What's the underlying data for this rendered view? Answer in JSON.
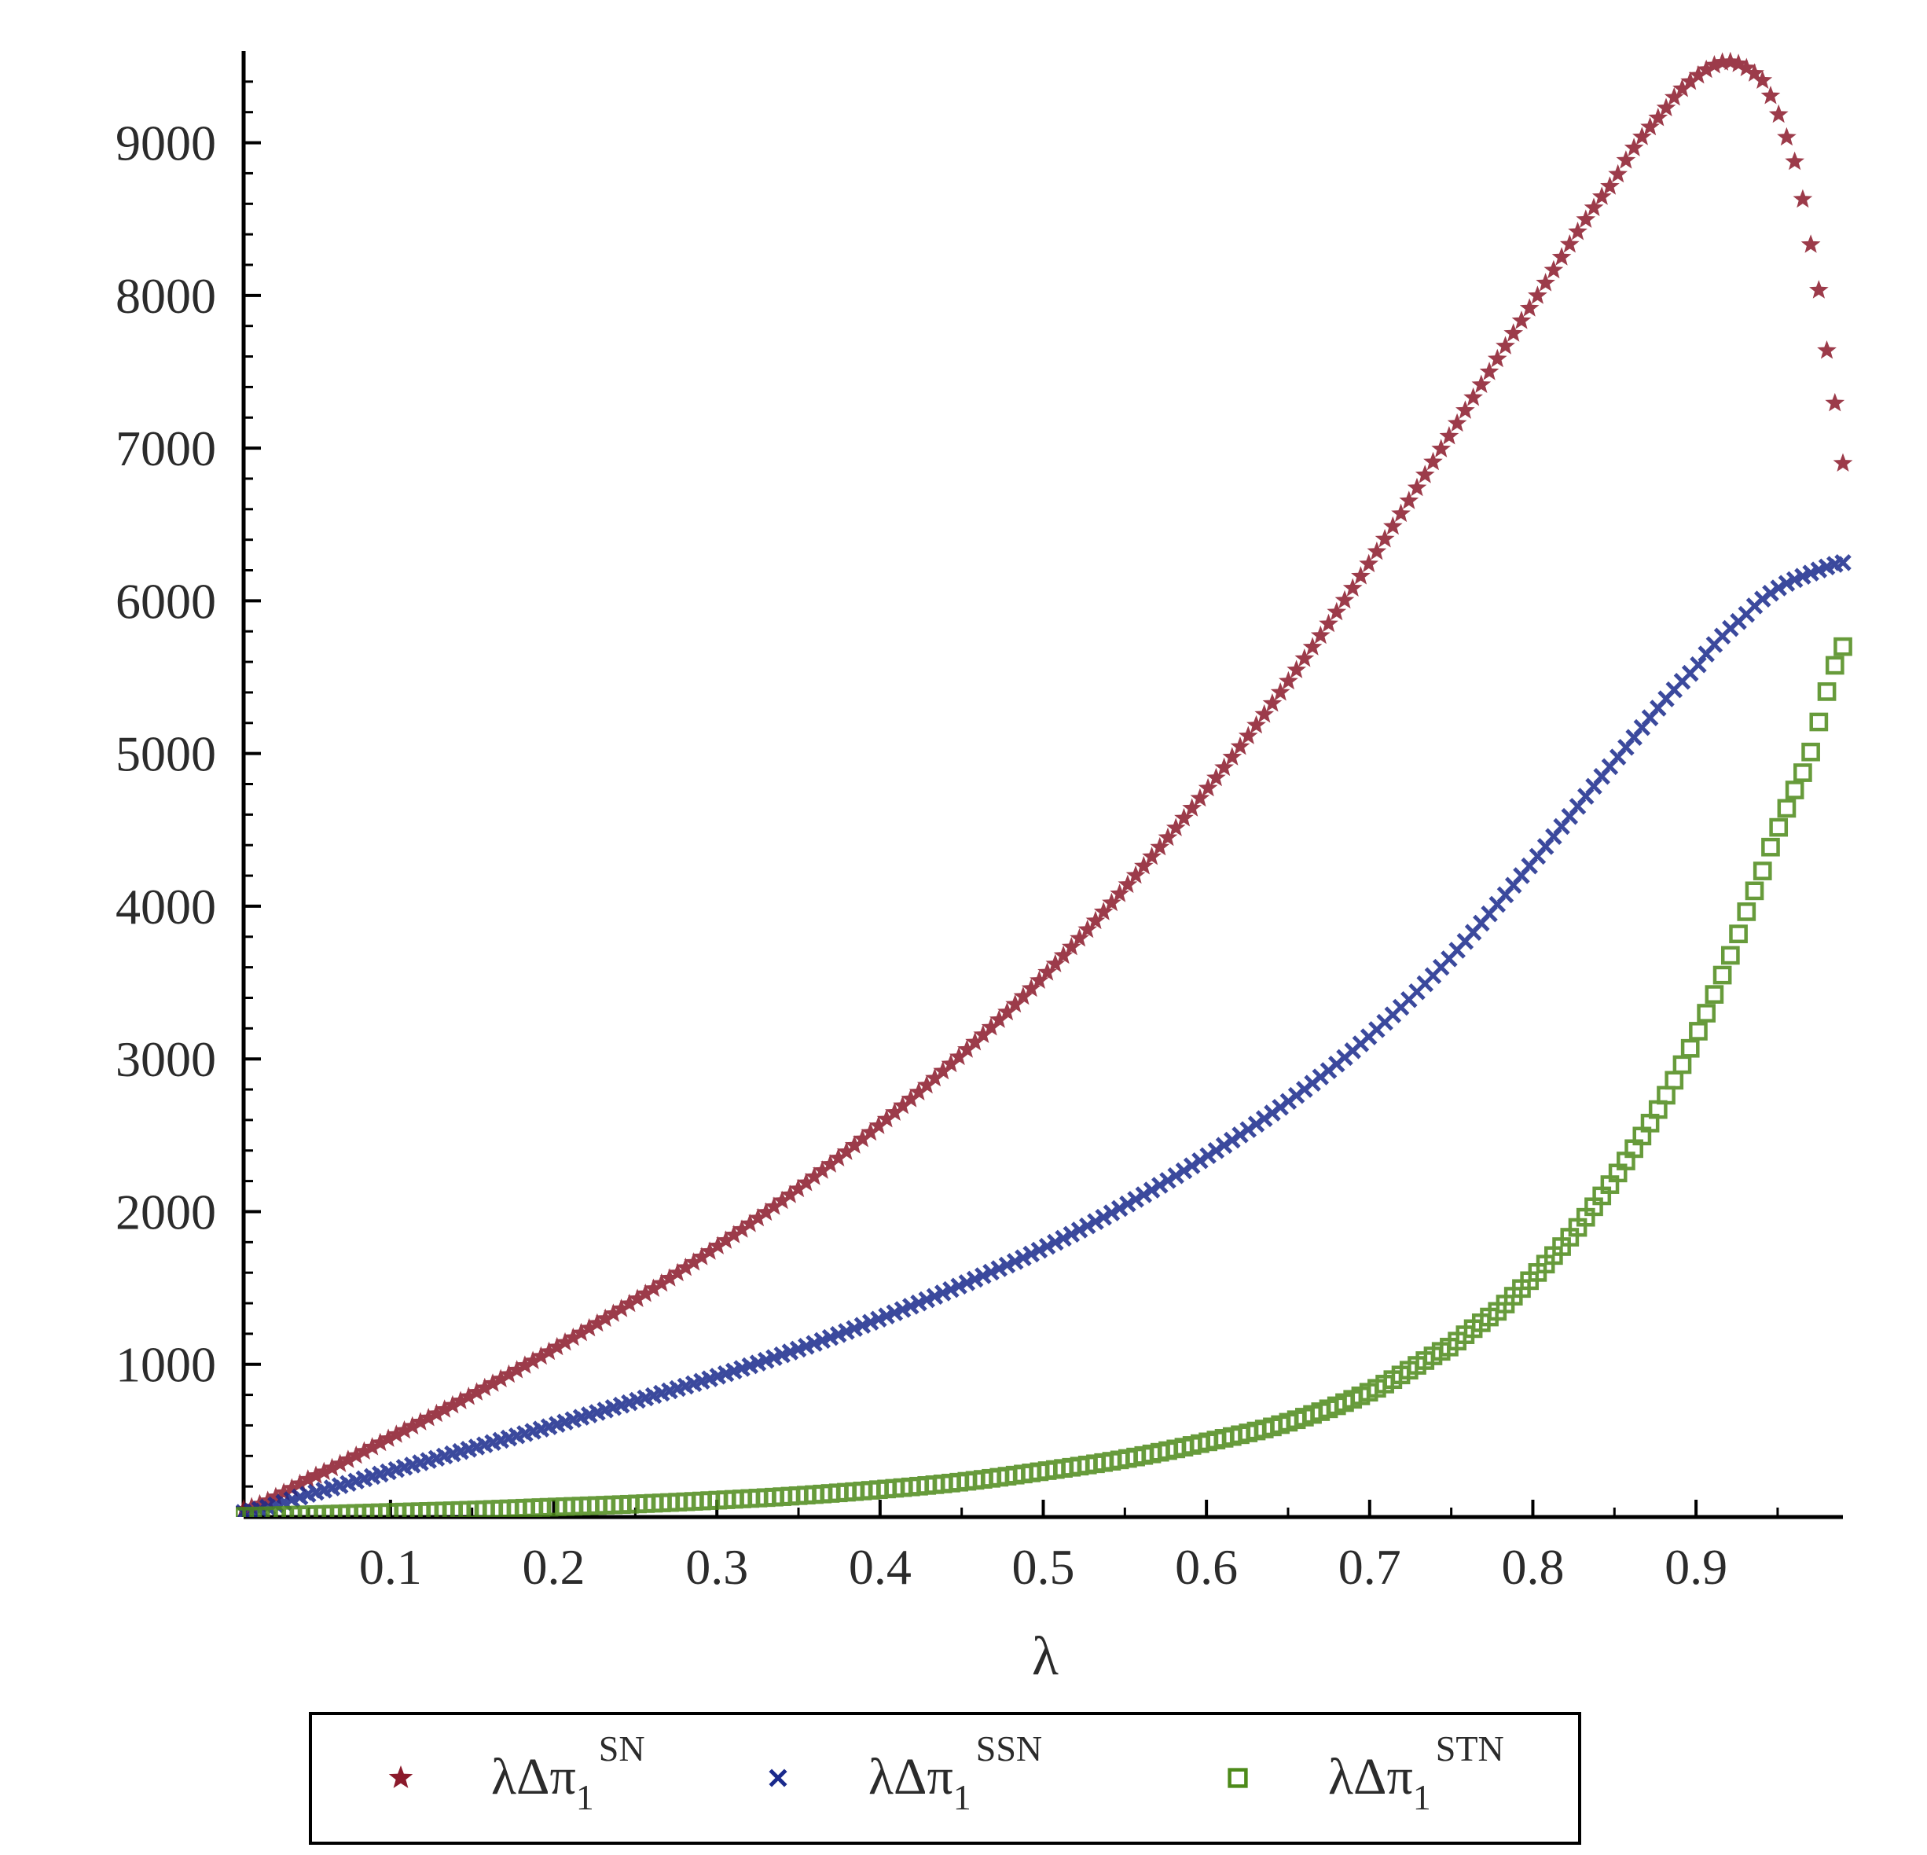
{
  "chart_data": {
    "type": "scatter",
    "title": "",
    "xlabel": "λ",
    "ylabel": "",
    "xlim": [
      0.01,
      0.99
    ],
    "ylim": [
      0,
      9600
    ],
    "grid": false,
    "legend_position": "bottom",
    "x_ticks": [
      "0.1",
      "0.2",
      "0.3",
      "0.4",
      "0.5",
      "0.6",
      "0.7",
      "0.8",
      "0.9"
    ],
    "y_ticks": [
      "1000",
      "2000",
      "3000",
      "4000",
      "5000",
      "6000",
      "7000",
      "8000",
      "9000"
    ],
    "series": [
      {
        "name": "SN",
        "legend_main": "λΔπ",
        "legend_sub": "1",
        "legend_sup": "SN",
        "marker": "star",
        "color": "#8b1a2b",
        "x": [
          0.01,
          0.05,
          0.1,
          0.15,
          0.2,
          0.25,
          0.3,
          0.35,
          0.4,
          0.45,
          0.5,
          0.55,
          0.6,
          0.65,
          0.7,
          0.75,
          0.8,
          0.85,
          0.88,
          0.9,
          0.92,
          0.94,
          0.95,
          0.96,
          0.965,
          0.97,
          0.975,
          0.98,
          0.985,
          0.99
        ],
        "y": [
          50,
          250,
          520,
          800,
          1100,
          1420,
          1770,
          2150,
          2570,
          3030,
          3540,
          4120,
          4760,
          5470,
          6250,
          7100,
          7950,
          8750,
          9200,
          9430,
          9530,
          9420,
          9200,
          8900,
          8650,
          8350,
          8050,
          7650,
          7300,
          6900
        ]
      },
      {
        "name": "SSN",
        "legend_main": "λΔπ",
        "legend_sub": "1",
        "legend_sup": "SSN",
        "marker": "cross",
        "color": "#1a2a8c",
        "x": [
          0.01,
          0.05,
          0.1,
          0.15,
          0.2,
          0.25,
          0.3,
          0.35,
          0.4,
          0.45,
          0.5,
          0.55,
          0.6,
          0.65,
          0.7,
          0.75,
          0.8,
          0.85,
          0.9,
          0.93,
          0.95,
          0.97,
          0.99
        ],
        "y": [
          30,
          150,
          300,
          450,
          600,
          760,
          920,
          1100,
          1300,
          1520,
          1760,
          2040,
          2360,
          2720,
          3150,
          3670,
          4290,
          4950,
          5560,
          5900,
          6080,
          6180,
          6250
        ]
      },
      {
        "name": "STN",
        "legend_main": "λΔπ",
        "legend_sub": "1",
        "legend_sup": "STN",
        "marker": "square",
        "color": "#4d8a1a",
        "x": [
          0.01,
          0.05,
          0.1,
          0.15,
          0.2,
          0.25,
          0.3,
          0.35,
          0.4,
          0.45,
          0.5,
          0.55,
          0.6,
          0.65,
          0.7,
          0.75,
          0.78,
          0.8,
          0.82,
          0.84,
          0.86,
          0.88,
          0.9,
          0.92,
          0.94,
          0.95,
          0.96,
          0.97,
          0.98,
          0.99
        ],
        "y": [
          5,
          15,
          30,
          45,
          65,
          85,
          110,
          140,
          180,
          230,
          300,
          380,
          490,
          620,
          820,
          1120,
          1360,
          1570,
          1800,
          2070,
          2380,
          2730,
          3150,
          3650,
          4200,
          4500,
          4750,
          5000,
          5400,
          5700
        ]
      }
    ]
  }
}
